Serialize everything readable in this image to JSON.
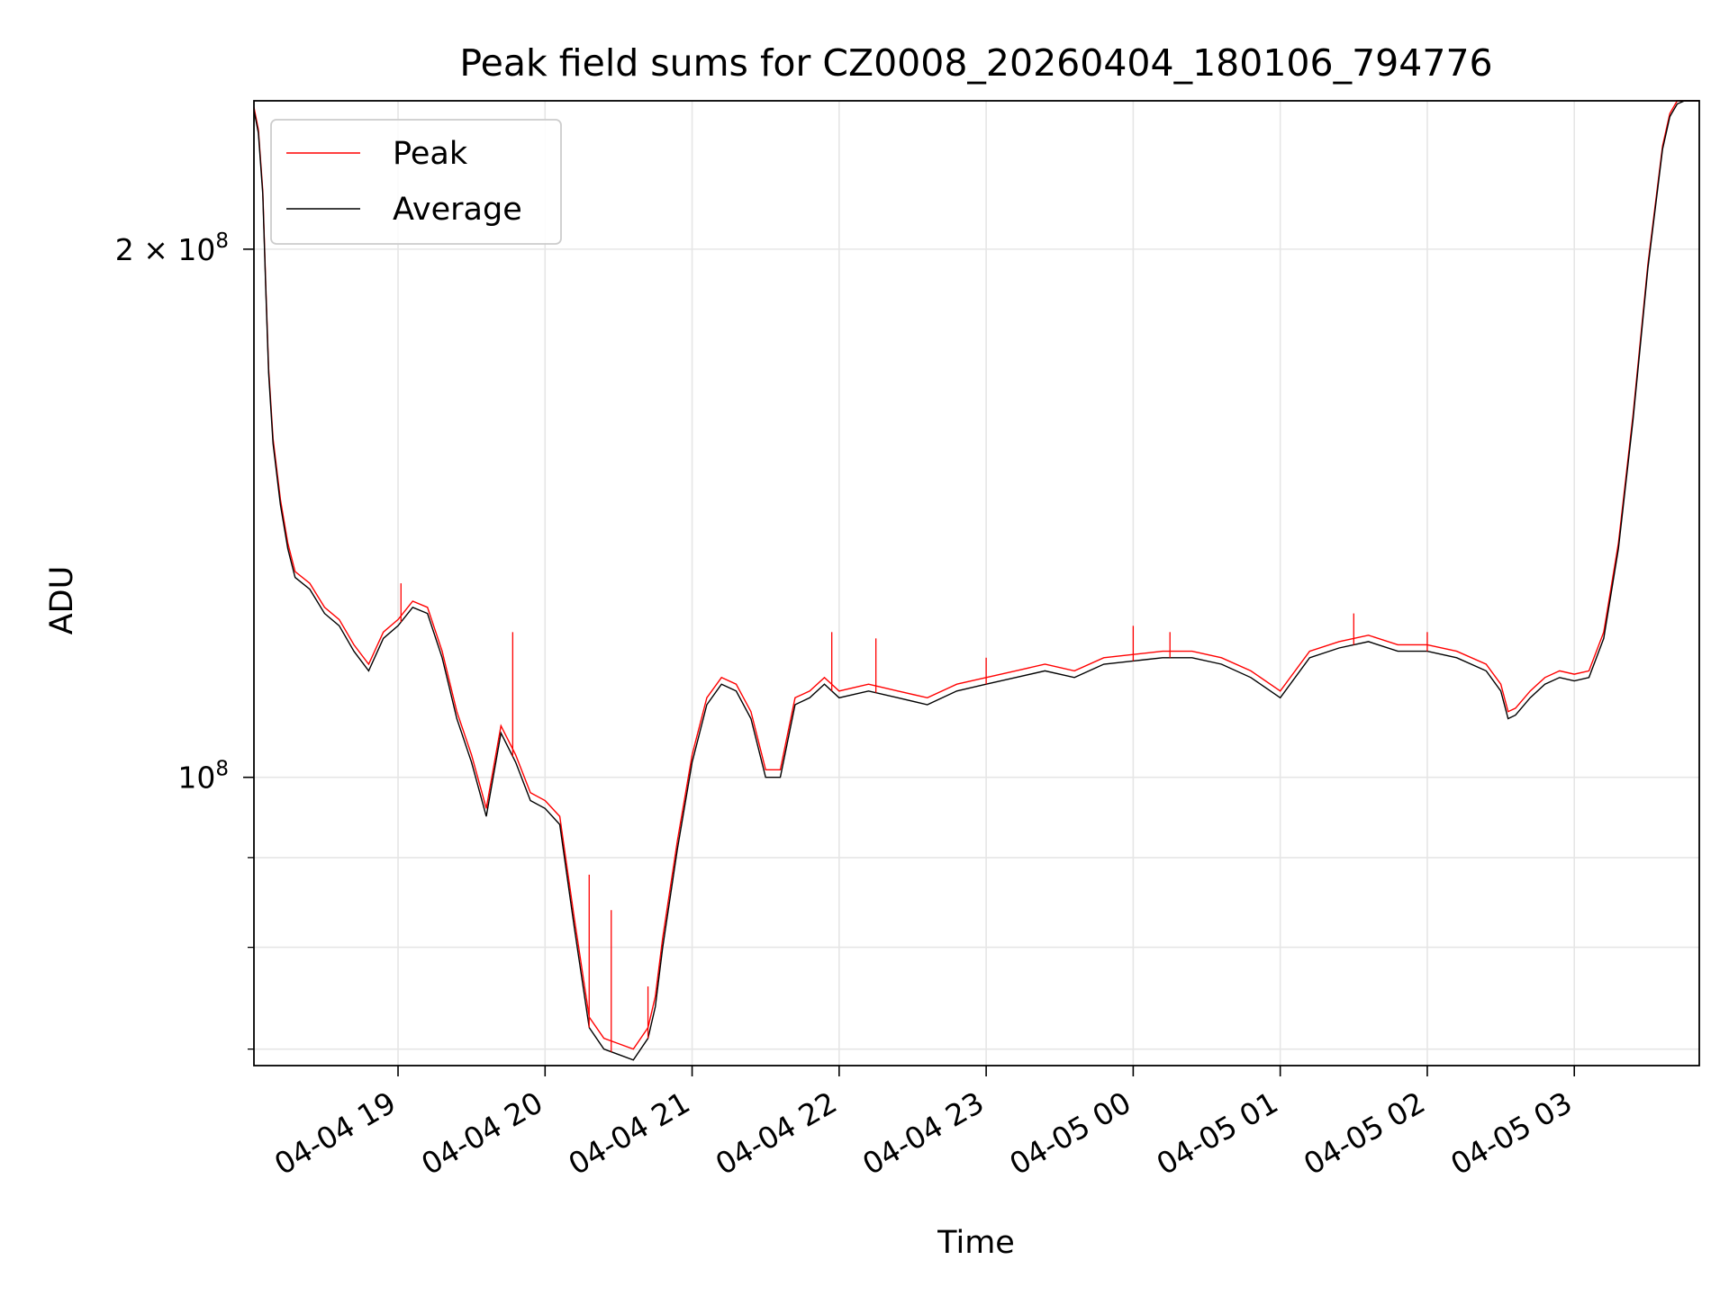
{
  "colors": {
    "peak": "#ff0000",
    "average": "#000000",
    "grid": "#e6e6e6",
    "background": "#ffffff"
  },
  "chart_data": {
    "type": "line",
    "title": "Peak field sums for CZ0008_20260404_180106_794776",
    "xlabel": "Time",
    "ylabel": "ADU",
    "yscale": "log",
    "xlim_hours_since_04-04_18:00": [
      0.02,
      9.85
    ],
    "ylim": [
      68500000,
      243000000
    ],
    "x_unit": "hours since 04-04 18:00",
    "x_ticks": [
      {
        "hour": 1,
        "label": "04-04 19"
      },
      {
        "hour": 2,
        "label": "04-04 20"
      },
      {
        "hour": 3,
        "label": "04-04 21"
      },
      {
        "hour": 4,
        "label": "04-04 22"
      },
      {
        "hour": 5,
        "label": "04-04 23"
      },
      {
        "hour": 6,
        "label": "04-05 00"
      },
      {
        "hour": 7,
        "label": "04-05 01"
      },
      {
        "hour": 8,
        "label": "04-05 02"
      },
      {
        "hour": 9,
        "label": "04-05 03"
      }
    ],
    "y_major_ticks": [
      {
        "value": 100000000,
        "base": "10",
        "exp": "8"
      },
      {
        "value": 200000000,
        "base": "2 × 10",
        "exp": "8"
      }
    ],
    "y_minor_ticks": [
      70000000,
      80000000,
      90000000
    ],
    "legend": {
      "placement": "upper-left",
      "entries": [
        "Peak",
        "Average"
      ]
    },
    "grid": true,
    "series": [
      {
        "name": "Average",
        "x": [
          0.02,
          0.05,
          0.08,
          0.1,
          0.12,
          0.15,
          0.2,
          0.25,
          0.3,
          0.4,
          0.5,
          0.6,
          0.7,
          0.8,
          0.9,
          1.0,
          1.1,
          1.2,
          1.3,
          1.4,
          1.5,
          1.6,
          1.7,
          1.8,
          1.9,
          2.0,
          2.1,
          2.2,
          2.3,
          2.4,
          2.5,
          2.6,
          2.7,
          2.75,
          2.8,
          2.9,
          3.0,
          3.1,
          3.2,
          3.3,
          3.4,
          3.5,
          3.6,
          3.7,
          3.8,
          3.9,
          4.0,
          4.2,
          4.4,
          4.6,
          4.8,
          5.0,
          5.2,
          5.4,
          5.6,
          5.8,
          6.0,
          6.2,
          6.4,
          6.6,
          6.8,
          7.0,
          7.2,
          7.4,
          7.6,
          7.8,
          8.0,
          8.2,
          8.4,
          8.5,
          8.55,
          8.6,
          8.7,
          8.8,
          8.9,
          9.0,
          9.1,
          9.2,
          9.3,
          9.4,
          9.5,
          9.6,
          9.65,
          9.7,
          9.75,
          9.8,
          9.85
        ],
        "y": [
          240000000,
          233000000,
          215000000,
          190000000,
          170000000,
          155000000,
          143000000,
          135000000,
          130000000,
          128000000,
          124000000,
          122000000,
          118000000,
          115000000,
          120000000,
          122000000,
          125000000,
          124000000,
          117000000,
          108000000,
          102000000,
          95000000,
          106000000,
          102000000,
          97000000,
          96000000,
          94000000,
          82000000,
          72000000,
          70000000,
          69500000,
          69000000,
          71000000,
          74000000,
          80000000,
          91000000,
          102000000,
          110000000,
          113000000,
          112000000,
          108000000,
          100000000,
          100000000,
          110000000,
          111000000,
          113000000,
          111000000,
          112000000,
          111000000,
          110000000,
          112000000,
          113000000,
          114000000,
          115000000,
          114000000,
          116000000,
          116500000,
          117000000,
          117000000,
          116000000,
          114000000,
          111000000,
          117000000,
          118500000,
          119500000,
          118000000,
          118000000,
          117000000,
          115000000,
          112000000,
          108000000,
          108500000,
          111000000,
          113000000,
          114000000,
          113500000,
          114000000,
          120000000,
          135000000,
          160000000,
          195000000,
          228000000,
          238000000,
          242000000,
          243000000,
          243000000,
          243000000
        ]
      },
      {
        "name": "Peak",
        "x": [
          0.02,
          0.05,
          0.08,
          0.1,
          0.12,
          0.15,
          0.2,
          0.25,
          0.3,
          0.4,
          0.5,
          0.6,
          0.7,
          0.8,
          0.9,
          1.0,
          1.1,
          1.2,
          1.3,
          1.4,
          1.5,
          1.6,
          1.7,
          1.8,
          1.9,
          2.0,
          2.1,
          2.2,
          2.3,
          2.4,
          2.5,
          2.6,
          2.7,
          2.75,
          2.8,
          2.9,
          3.0,
          3.1,
          3.2,
          3.3,
          3.4,
          3.5,
          3.6,
          3.7,
          3.8,
          3.9,
          4.0,
          4.2,
          4.4,
          4.6,
          4.8,
          5.0,
          5.2,
          5.4,
          5.6,
          5.8,
          6.0,
          6.2,
          6.4,
          6.6,
          6.8,
          7.0,
          7.2,
          7.4,
          7.6,
          7.8,
          8.0,
          8.2,
          8.4,
          8.5,
          8.55,
          8.6,
          8.7,
          8.8,
          8.9,
          9.0,
          9.1,
          9.2,
          9.3,
          9.4,
          9.5,
          9.6,
          9.65,
          9.7,
          9.75,
          9.8,
          9.85
        ],
        "y": [
          241000000,
          234000000,
          216000000,
          191000000,
          171000000,
          156000000,
          144000000,
          136000000,
          131000000,
          129000000,
          125000000,
          123000000,
          119000000,
          116000000,
          121000000,
          123000000,
          126000000,
          125000000,
          118000000,
          109000000,
          103000000,
          96000000,
          107000000,
          103000000,
          98000000,
          97000000,
          95000000,
          83000000,
          73000000,
          71000000,
          70500000,
          70000000,
          72000000,
          75000000,
          81000000,
          92000000,
          103000000,
          111000000,
          114000000,
          113000000,
          109000000,
          101000000,
          101000000,
          111000000,
          112000000,
          114000000,
          112000000,
          113000000,
          112000000,
          111000000,
          113000000,
          114000000,
          115000000,
          116000000,
          115000000,
          117000000,
          117500000,
          118000000,
          118000000,
          117000000,
          115000000,
          112000000,
          118000000,
          119500000,
          120500000,
          119000000,
          119000000,
          118000000,
          116000000,
          113000000,
          109000000,
          109500000,
          112000000,
          114000000,
          115000000,
          114500000,
          115000000,
          121000000,
          136000000,
          161000000,
          196000000,
          229000000,
          239000000,
          243000000,
          243000000,
          243000000,
          243000000
        ]
      }
    ],
    "peak_spikes": [
      {
        "x": 1.02,
        "y": 129000000
      },
      {
        "x": 1.78,
        "y": 121000000
      },
      {
        "x": 2.3,
        "y": 88000000
      },
      {
        "x": 2.45,
        "y": 84000000
      },
      {
        "x": 2.7,
        "y": 76000000
      },
      {
        "x": 3.95,
        "y": 121000000
      },
      {
        "x": 4.25,
        "y": 120000000
      },
      {
        "x": 5.0,
        "y": 117000000
      },
      {
        "x": 6.0,
        "y": 122000000
      },
      {
        "x": 6.25,
        "y": 121000000
      },
      {
        "x": 7.5,
        "y": 124000000
      },
      {
        "x": 8.0,
        "y": 121000000
      }
    ]
  }
}
